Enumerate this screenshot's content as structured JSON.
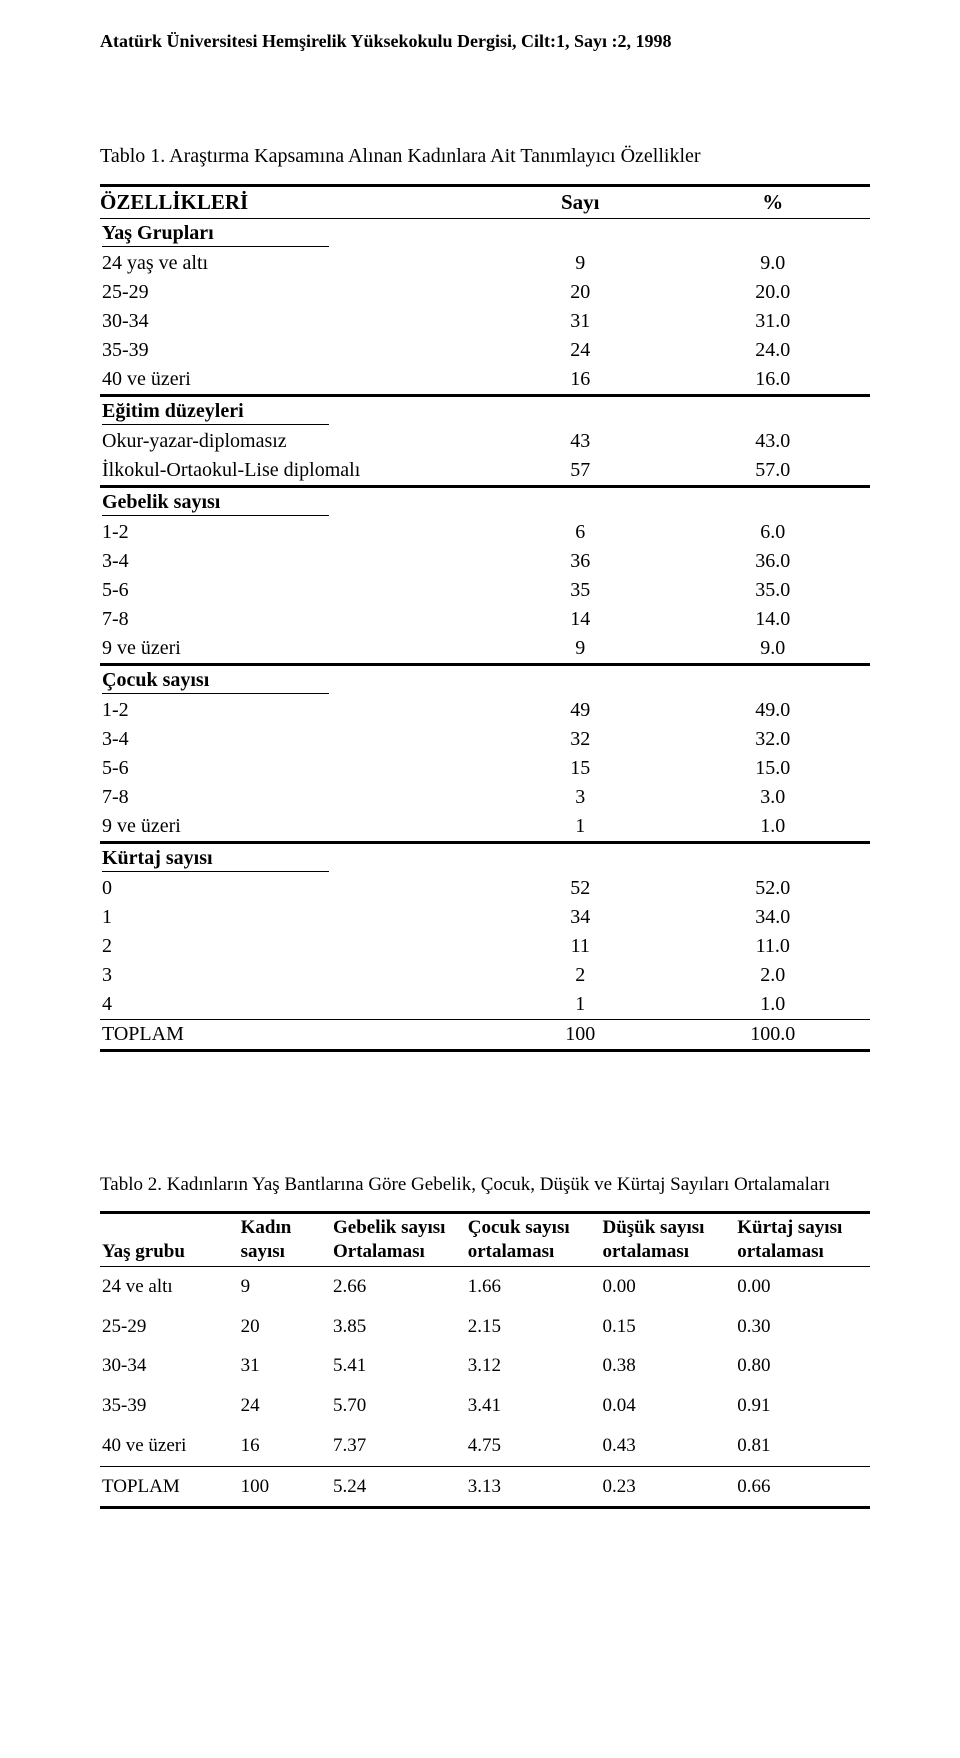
{
  "journal_header": "Atatürk Üniversitesi Hemşirelik Yüksekokulu Dergisi, Cilt:1, Sayı :2, 1998",
  "table1": {
    "caption": "Tablo 1. Araştırma Kapsamına Alınan Kadınlara Ait Tanımlayıcı Özellikler",
    "col_headers": {
      "c1": "ÖZELLİKLERİ",
      "c2": "Sayı",
      "c3": "%"
    },
    "sections": {
      "age": {
        "label": "Yaş Grupları",
        "rows": [
          {
            "label": "24 yaş ve altı",
            "n": "9",
            "pct": "9.0"
          },
          {
            "label": "25-29",
            "n": "20",
            "pct": "20.0"
          },
          {
            "label": "30-34",
            "n": "31",
            "pct": "31.0"
          },
          {
            "label": "35-39",
            "n": "24",
            "pct": "24.0"
          },
          {
            "label": "40 ve üzeri",
            "n": "16",
            "pct": "16.0"
          }
        ]
      },
      "edu": {
        "label": "Eğitim düzeyleri",
        "rows": [
          {
            "label": "Okur-yazar-diplomasız",
            "n": "43",
            "pct": "43.0"
          },
          {
            "label": "İlkokul-Ortaokul-Lise diplomalı",
            "n": "57",
            "pct": "57.0"
          }
        ]
      },
      "preg": {
        "label": "Gebelik sayısı",
        "rows": [
          {
            "label": "1-2",
            "n": "6",
            "pct": "6.0"
          },
          {
            "label": "3-4",
            "n": "36",
            "pct": "36.0"
          },
          {
            "label": "5-6",
            "n": "35",
            "pct": "35.0"
          },
          {
            "label": "7-8",
            "n": "14",
            "pct": "14.0"
          },
          {
            "label": "9 ve üzeri",
            "n": "9",
            "pct": "9.0"
          }
        ]
      },
      "child": {
        "label": "Çocuk sayısı",
        "rows": [
          {
            "label": "1-2",
            "n": "49",
            "pct": "49.0"
          },
          {
            "label": "3-4",
            "n": "32",
            "pct": "32.0"
          },
          {
            "label": "5-6",
            "n": "15",
            "pct": "15.0"
          },
          {
            "label": "7-8",
            "n": "3",
            "pct": "3.0"
          },
          {
            "label": "9 ve üzeri",
            "n": "1",
            "pct": "1.0"
          }
        ]
      },
      "abort": {
        "label": "Kürtaj sayısı",
        "rows": [
          {
            "label": "0",
            "n": "52",
            "pct": "52.0"
          },
          {
            "label": "1",
            "n": "34",
            "pct": "34.0"
          },
          {
            "label": "2",
            "n": "11",
            "pct": "11.0"
          },
          {
            "label": "3",
            "n": "2",
            "pct": "2.0"
          },
          {
            "label": "4",
            "n": "1",
            "pct": "1.0"
          }
        ]
      }
    },
    "total": {
      "label": "TOPLAM",
      "n": "100",
      "pct": "100.0"
    }
  },
  "table2": {
    "caption": "Tablo 2. Kadınların Yaş Bantlarına Göre Gebelik, Çocuk, Düşük ve Kürtaj Sayıları Ortalamaları",
    "col_headers": {
      "age": "Yaş grubu",
      "n": "Kadın sayısı",
      "preg": "Gebelik sayısı Ortalaması",
      "child": "Çocuk sayısı ortalaması",
      "misc": "Düşük sayısı ortalaması",
      "abort": "Kürtaj sayısı ortalaması"
    },
    "rows": [
      {
        "age": "24 ve altı",
        "n": "9",
        "preg": "2.66",
        "child": "1.66",
        "misc": "0.00",
        "abort": "0.00"
      },
      {
        "age": "25-29",
        "n": "20",
        "preg": "3.85",
        "child": "2.15",
        "misc": "0.15",
        "abort": "0.30"
      },
      {
        "age": "30-34",
        "n": "31",
        "preg": "5.41",
        "child": "3.12",
        "misc": "0.38",
        "abort": "0.80"
      },
      {
        "age": "35-39",
        "n": "24",
        "preg": "5.70",
        "child": "3.41",
        "misc": "0.04",
        "abort": "0.91"
      },
      {
        "age": "40 ve üzeri",
        "n": "16",
        "preg": "7.37",
        "child": "4.75",
        "misc": "0.43",
        "abort": "0.81"
      }
    ],
    "total": {
      "age": "TOPLAM",
      "n": "100",
      "preg": "5.24",
      "child": "3.13",
      "misc": "0.23",
      "abort": "0.66"
    }
  }
}
